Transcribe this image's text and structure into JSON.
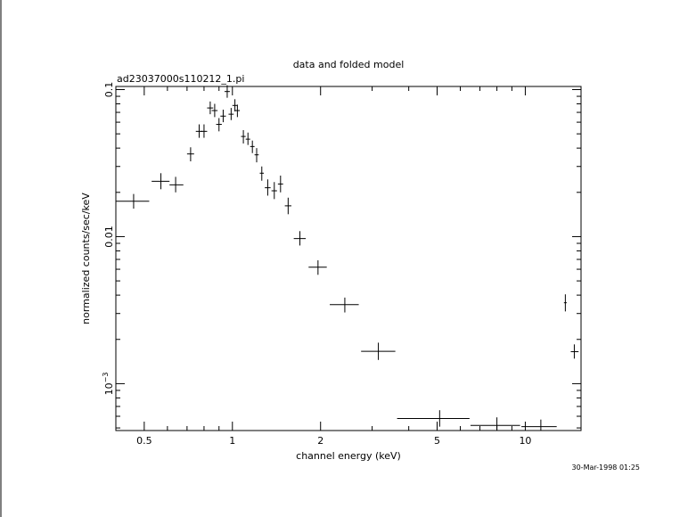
{
  "chart_data": {
    "type": "scatter",
    "title": "data and folded model",
    "subtitle": "ad23037000s110212_1.pi",
    "xlabel": "channel energy (keV)",
    "ylabel": "normalized counts/sec/keV",
    "timestamp": "30-Mar-1998 01:25",
    "x_scale": "log",
    "y_scale": "log",
    "xlim": [
      0.4,
      15.5
    ],
    "ylim": [
      0.00048,
      0.105
    ],
    "x_ticks": [
      {
        "value": 0.5,
        "label": "0.5"
      },
      {
        "value": 1,
        "label": "1"
      },
      {
        "value": 2,
        "label": "2"
      },
      {
        "value": 5,
        "label": "5"
      },
      {
        "value": 10,
        "label": "10"
      }
    ],
    "y_ticks": [
      {
        "value": 0.1,
        "label": "0.1",
        "exp": ""
      },
      {
        "value": 0.01,
        "label": "0.01",
        "exp": ""
      },
      {
        "value": 0.001,
        "label": "10",
        "exp": "−3"
      }
    ],
    "grid": false,
    "series": [
      {
        "points": [
          {
            "x": 0.46,
            "xlo": 0.4,
            "xhi": 0.52,
            "y": 0.0174,
            "ylo": 0.0155,
            "yhi": 0.0195
          },
          {
            "x": 0.57,
            "xlo": 0.53,
            "xhi": 0.61,
            "y": 0.0238,
            "ylo": 0.021,
            "yhi": 0.027
          },
          {
            "x": 0.64,
            "xlo": 0.61,
            "xhi": 0.68,
            "y": 0.0225,
            "ylo": 0.02,
            "yhi": 0.0255
          },
          {
            "x": 0.72,
            "xlo": 0.7,
            "xhi": 0.74,
            "y": 0.0365,
            "ylo": 0.0325,
            "yhi": 0.0405
          },
          {
            "x": 0.77,
            "xlo": 0.75,
            "xhi": 0.79,
            "y": 0.052,
            "ylo": 0.047,
            "yhi": 0.058
          },
          {
            "x": 0.8,
            "xlo": 0.78,
            "xhi": 0.82,
            "y": 0.052,
            "ylo": 0.047,
            "yhi": 0.058
          },
          {
            "x": 0.84,
            "xlo": 0.82,
            "xhi": 0.86,
            "y": 0.075,
            "ylo": 0.068,
            "yhi": 0.083
          },
          {
            "x": 0.87,
            "xlo": 0.85,
            "xhi": 0.89,
            "y": 0.072,
            "ylo": 0.065,
            "yhi": 0.08
          },
          {
            "x": 0.9,
            "xlo": 0.88,
            "xhi": 0.92,
            "y": 0.058,
            "ylo": 0.052,
            "yhi": 0.064
          },
          {
            "x": 0.93,
            "xlo": 0.91,
            "xhi": 0.95,
            "y": 0.066,
            "ylo": 0.06,
            "yhi": 0.073
          },
          {
            "x": 0.96,
            "xlo": 0.94,
            "xhi": 0.98,
            "y": 0.097,
            "ylo": 0.088,
            "yhi": 0.107
          },
          {
            "x": 0.99,
            "xlo": 0.97,
            "xhi": 1.01,
            "y": 0.068,
            "ylo": 0.062,
            "yhi": 0.075
          },
          {
            "x": 1.02,
            "xlo": 1.0,
            "xhi": 1.04,
            "y": 0.078,
            "ylo": 0.071,
            "yhi": 0.086
          },
          {
            "x": 1.04,
            "xlo": 1.02,
            "xhi": 1.06,
            "y": 0.072,
            "ylo": 0.065,
            "yhi": 0.079
          },
          {
            "x": 1.09,
            "xlo": 1.07,
            "xhi": 1.11,
            "y": 0.048,
            "ylo": 0.043,
            "yhi": 0.053
          },
          {
            "x": 1.13,
            "xlo": 1.11,
            "xhi": 1.15,
            "y": 0.046,
            "ylo": 0.042,
            "yhi": 0.051
          },
          {
            "x": 1.17,
            "xlo": 1.15,
            "xhi": 1.19,
            "y": 0.041,
            "ylo": 0.037,
            "yhi": 0.045
          },
          {
            "x": 1.21,
            "xlo": 1.19,
            "xhi": 1.23,
            "y": 0.036,
            "ylo": 0.032,
            "yhi": 0.04
          },
          {
            "x": 1.26,
            "xlo": 1.24,
            "xhi": 1.28,
            "y": 0.027,
            "ylo": 0.024,
            "yhi": 0.03
          },
          {
            "x": 1.32,
            "xlo": 1.29,
            "xhi": 1.35,
            "y": 0.0215,
            "ylo": 0.019,
            "yhi": 0.0245
          },
          {
            "x": 1.39,
            "xlo": 1.36,
            "xhi": 1.42,
            "y": 0.0205,
            "ylo": 0.018,
            "yhi": 0.0235
          },
          {
            "x": 1.46,
            "xlo": 1.43,
            "xhi": 1.49,
            "y": 0.0228,
            "ylo": 0.02,
            "yhi": 0.026
          },
          {
            "x": 1.55,
            "xlo": 1.51,
            "xhi": 1.59,
            "y": 0.0162,
            "ylo": 0.0142,
            "yhi": 0.0184
          },
          {
            "x": 1.7,
            "xlo": 1.62,
            "xhi": 1.78,
            "y": 0.0097,
            "ylo": 0.0087,
            "yhi": 0.0109
          },
          {
            "x": 1.96,
            "xlo": 1.82,
            "xhi": 2.1,
            "y": 0.0062,
            "ylo": 0.0055,
            "yhi": 0.0069
          },
          {
            "x": 2.42,
            "xlo": 2.15,
            "xhi": 2.7,
            "y": 0.00345,
            "ylo": 0.00305,
            "yhi": 0.00385
          },
          {
            "x": 3.15,
            "xlo": 2.75,
            "xhi": 3.6,
            "y": 0.00166,
            "ylo": 0.00145,
            "yhi": 0.0019
          },
          {
            "x": 5.1,
            "xlo": 3.65,
            "xhi": 6.45,
            "y": 0.00058,
            "ylo": 0.00051,
            "yhi": 0.00066
          },
          {
            "x": 8.0,
            "xlo": 6.5,
            "xhi": 9.6,
            "y": 0.00052,
            "ylo": 0.00046,
            "yhi": 0.00059
          },
          {
            "x": 11.3,
            "xlo": 9.7,
            "xhi": 12.8,
            "y": 0.00051,
            "ylo": 0.00045,
            "yhi": 0.00057
          },
          {
            "x": 13.7,
            "xlo": 13.55,
            "xhi": 13.85,
            "y": 0.00355,
            "ylo": 0.0031,
            "yhi": 0.00405
          },
          {
            "x": 14.7,
            "xlo": 14.3,
            "xhi": 15.2,
            "y": 0.00165,
            "ylo": 0.00148,
            "yhi": 0.00185
          }
        ]
      }
    ]
  }
}
